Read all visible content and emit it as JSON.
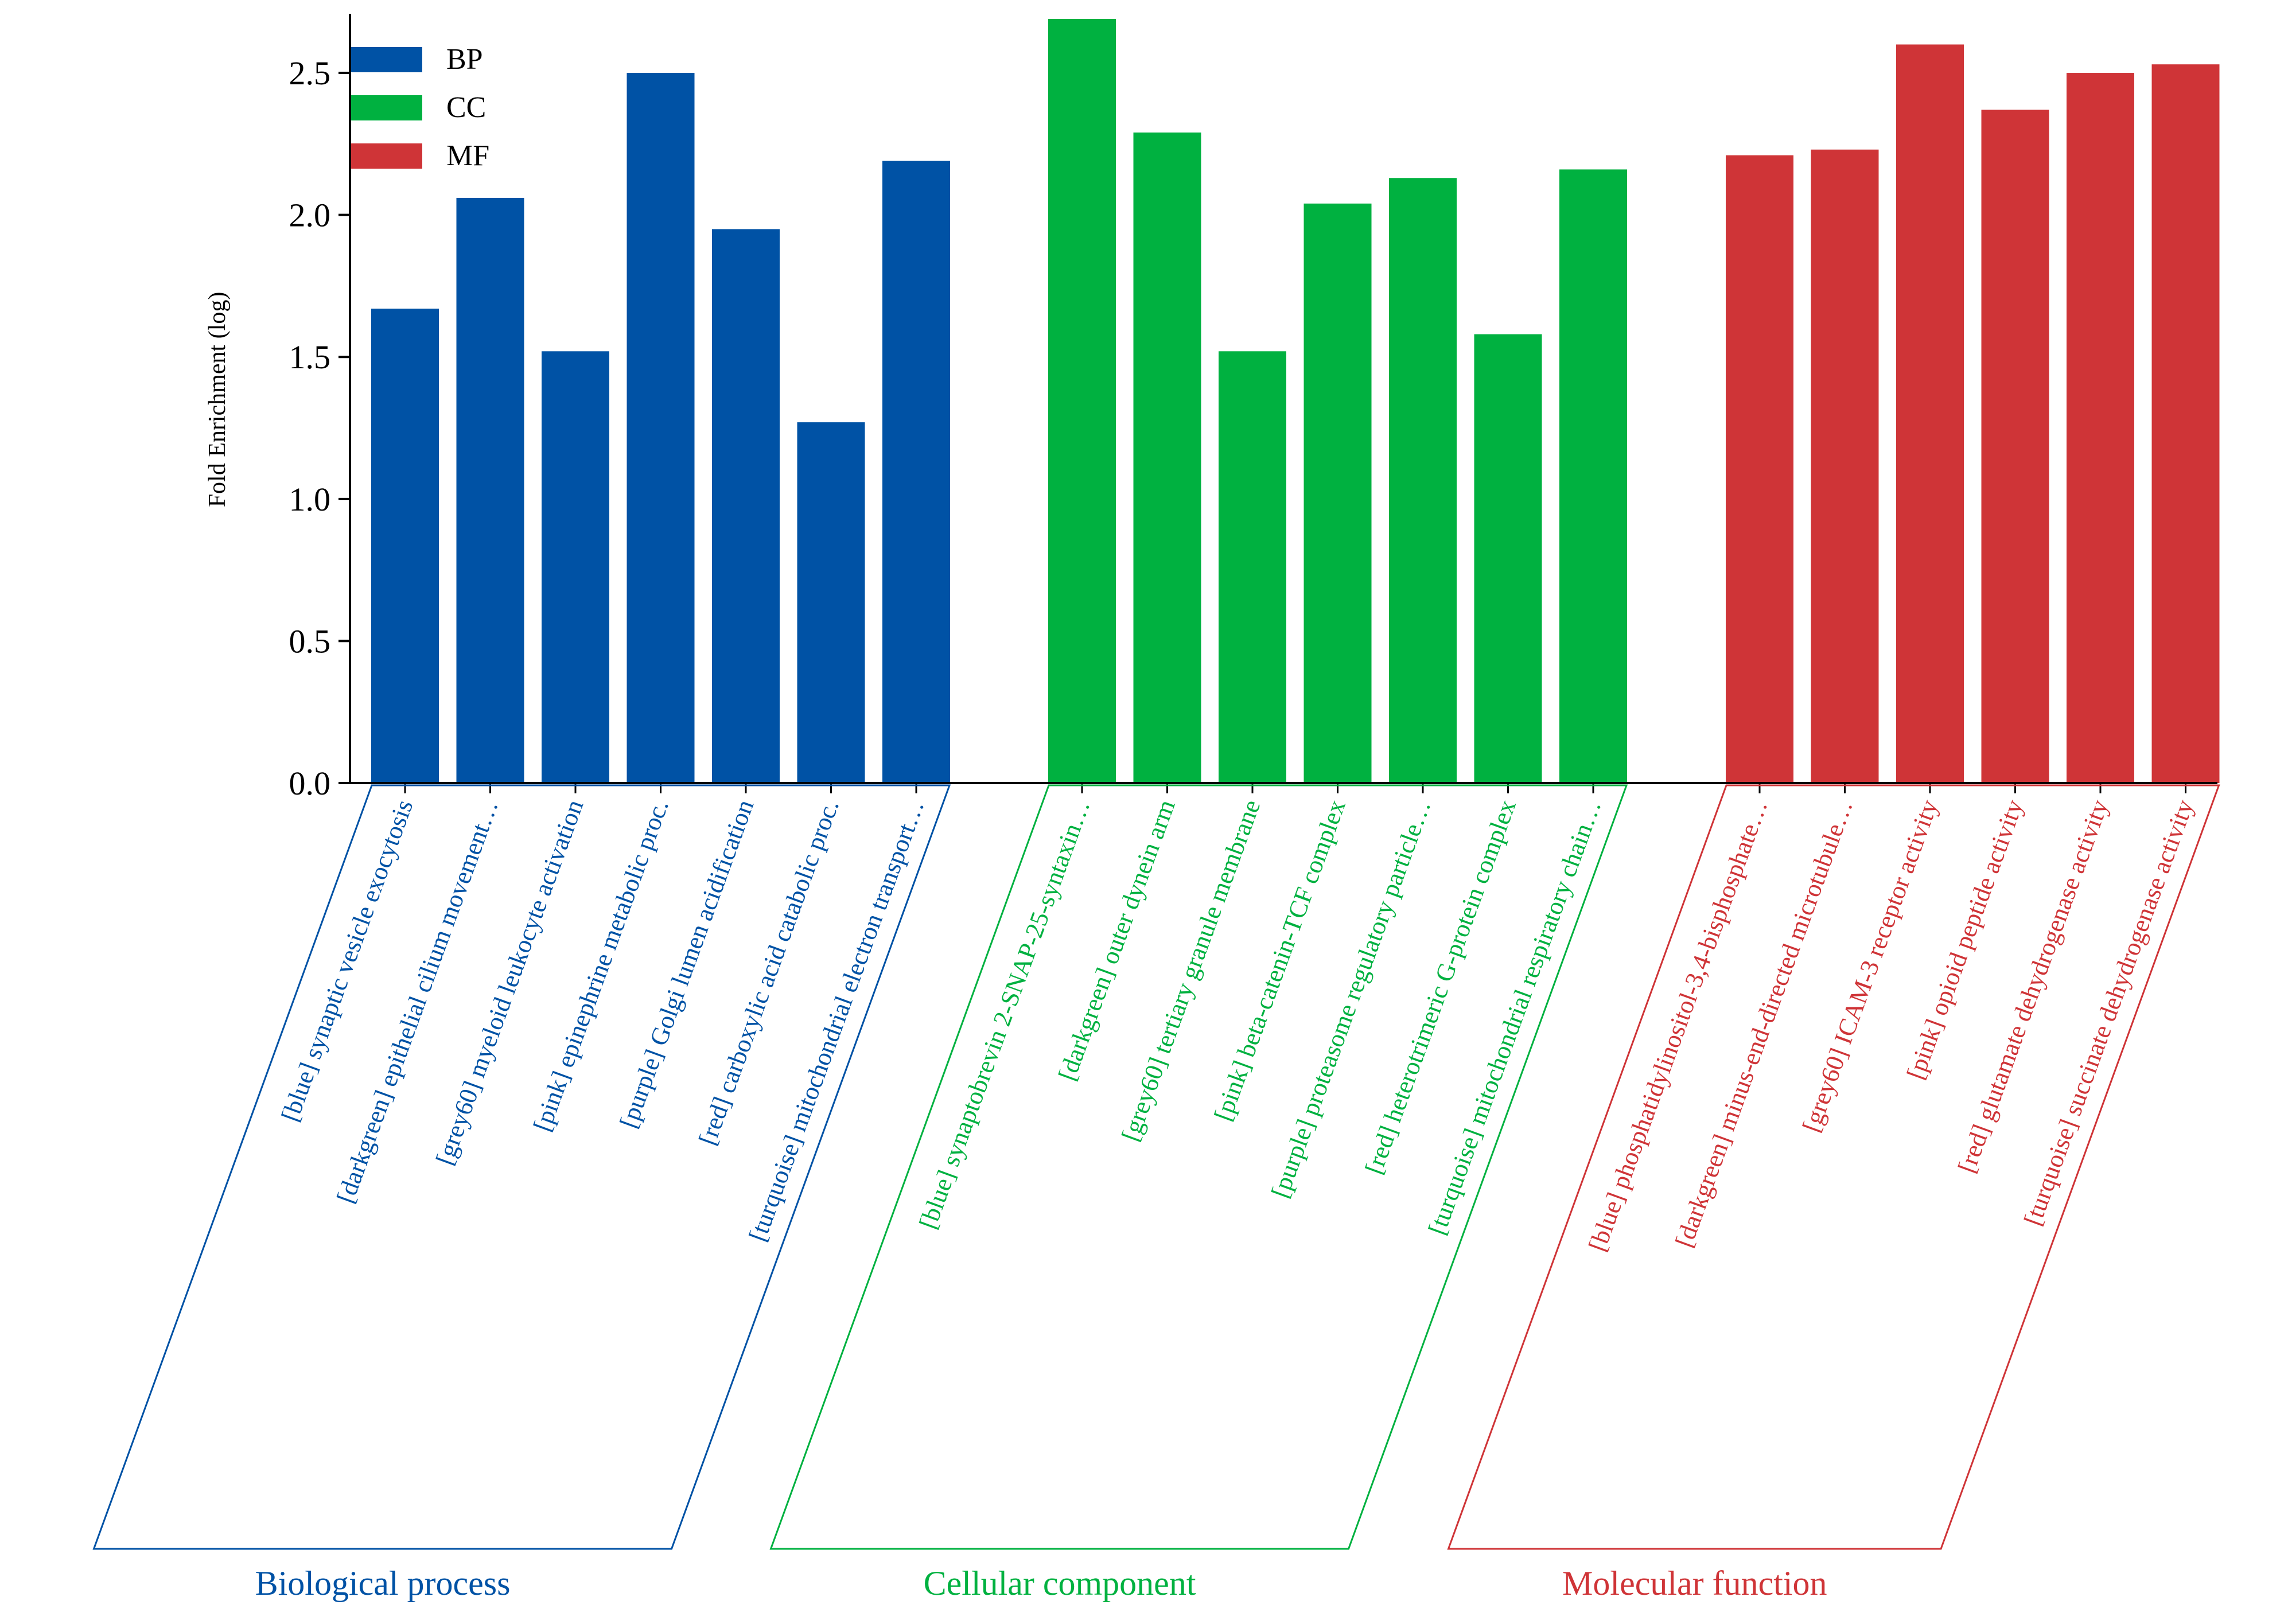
{
  "chart_data": {
    "type": "bar",
    "ylabel": "Fold Enrichment (log)",
    "ylim": [
      0,
      2.7
    ],
    "yticks": [
      0.0,
      0.5,
      1.0,
      1.5,
      2.0,
      2.5
    ],
    "ytick_labels": [
      "0.0",
      "0.5",
      "1.0",
      "1.5",
      "2.0",
      "2.5"
    ],
    "grid": false,
    "legend_position": "top-left",
    "legend": [
      {
        "key": "BP",
        "label": "BP",
        "color": "#0052a5"
      },
      {
        "key": "CC",
        "label": "CC",
        "color": "#00b140"
      },
      {
        "key": "MF",
        "label": "MF",
        "color": "#cf3437"
      }
    ],
    "groups": [
      {
        "key": "BP",
        "title": "Biological process",
        "color": "#0052a5",
        "categories": [
          "[blue] synaptic vesicle exocytosis",
          "[darkgreen] epithelial cilium movement…",
          "[grey60] myeloid leukocyte activation",
          "[pink] epinephrine metabolic proc.",
          "[purple] Golgi lumen acidification",
          "[red] carboxylic acid catabolic proc.",
          "[turquoise] mitochondrial electron transport…"
        ],
        "values": [
          1.67,
          2.06,
          1.52,
          2.5,
          1.95,
          1.27,
          2.19
        ]
      },
      {
        "key": "CC",
        "title": "Cellular component",
        "color": "#00b140",
        "categories": [
          "[blue] synaptobrevin 2-SNAP-25-syntaxin…",
          "[darkgreen] outer dynein arm",
          "[grey60] tertiary granule membrane",
          "[pink] beta-catenin-TCF complex",
          "[purple] proteasome regulatory particle…",
          "[red] heterotrimeric G-protein complex",
          "[turquoise] mitochondrial respiratory chain…"
        ],
        "values": [
          2.69,
          2.29,
          1.52,
          2.04,
          2.13,
          1.58,
          2.16
        ]
      },
      {
        "key": "MF",
        "title": "Molecular function",
        "color": "#cf3437",
        "categories": [
          "[blue] phosphatidylinositol-3,4-bisphosphate…",
          "[darkgreen] minus-end-directed microtubule…",
          "[grey60] ICAM-3 receptor activity",
          "[pink] opioid peptide activity",
          "[red] glutamate dehydrogenase activity",
          "[turquoise] succinate dehydrogenase activity"
        ],
        "values": [
          2.21,
          2.23,
          2.6,
          2.37,
          2.5,
          2.53
        ]
      }
    ]
  }
}
